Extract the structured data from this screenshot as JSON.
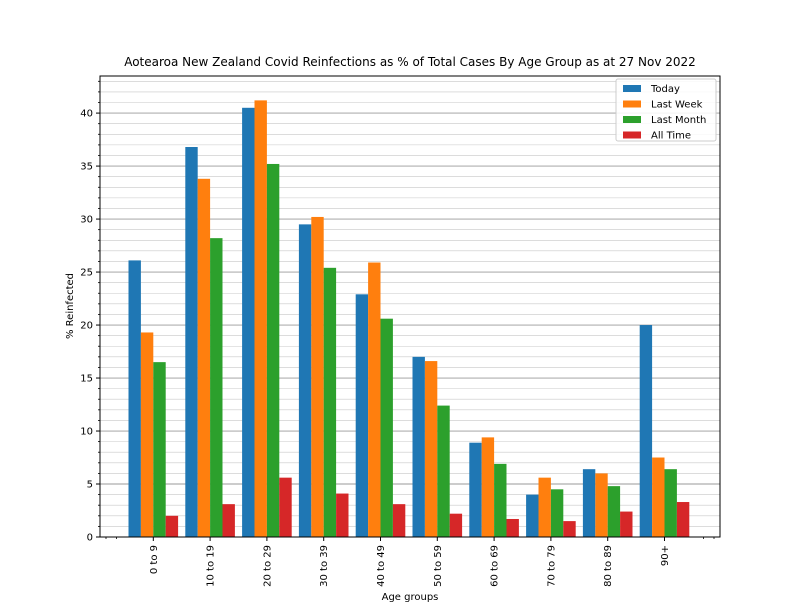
{
  "chart_data": {
    "type": "bar",
    "title": "Aotearoa New Zealand Covid Reinfections as % of Total Cases By Age Group as at 27 Nov 2022",
    "xlabel": "Age groups",
    "ylabel": "% Reinfected",
    "categories": [
      "0 to 9",
      "10 to 19",
      "20 to 29",
      "30 to 39",
      "40 to 49",
      "50 to 59",
      "60 to 69",
      "70 to 79",
      "80 to 89",
      "90+"
    ],
    "ylim": [
      0,
      43.5
    ],
    "yticks": [
      0,
      5,
      10,
      15,
      20,
      25,
      30,
      35,
      40
    ],
    "grid": "horizontal, major and minor",
    "legend_position": "top-right",
    "series": [
      {
        "name": "Today",
        "color": "#1f77b4",
        "values": [
          26.1,
          36.8,
          40.5,
          29.5,
          22.9,
          17.0,
          8.9,
          4.0,
          6.4,
          20.0
        ]
      },
      {
        "name": "Last Week",
        "color": "#ff7f0e",
        "values": [
          19.3,
          33.8,
          41.2,
          30.2,
          25.9,
          16.6,
          9.4,
          5.6,
          6.0,
          7.5
        ]
      },
      {
        "name": "Last Month",
        "color": "#2ca02c",
        "values": [
          16.5,
          28.2,
          35.2,
          25.4,
          20.6,
          12.4,
          6.9,
          4.5,
          4.8,
          6.4
        ]
      },
      {
        "name": "All Time",
        "color": "#d62728",
        "values": [
          2.0,
          3.1,
          5.6,
          4.1,
          3.1,
          2.2,
          1.7,
          1.5,
          2.4,
          3.3
        ]
      }
    ]
  }
}
